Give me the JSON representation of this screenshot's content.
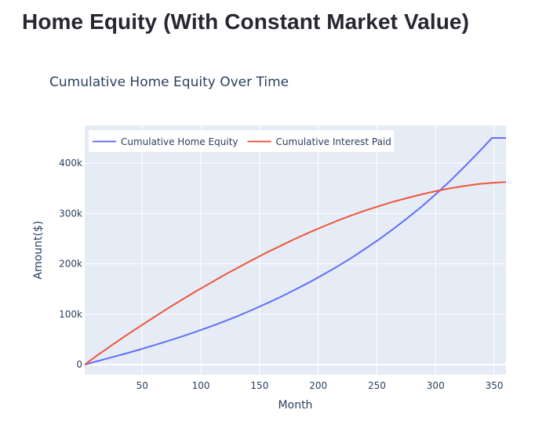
{
  "page": {
    "title": "Home Equity (With Constant Market Value)"
  },
  "chart_data": {
    "type": "line",
    "title": "Cumulative Home Equity Over Time",
    "xlabel": "Month",
    "ylabel": "Amount($)",
    "xlim": [
      1,
      360
    ],
    "ylim": [
      -20000,
      475000
    ],
    "x_ticks": [
      50,
      100,
      150,
      200,
      250,
      300,
      350
    ],
    "x_tick_labels": [
      "50",
      "100",
      "150",
      "200",
      "250",
      "300",
      "350"
    ],
    "y_ticks": [
      0,
      100000,
      200000,
      300000,
      400000
    ],
    "y_tick_labels": [
      "0",
      "100k",
      "200k",
      "300k",
      "400k"
    ],
    "grid": true,
    "legend_position": "top-left",
    "series": [
      {
        "name": "Cumulative Home Equity",
        "color": "#636efa",
        "x": [
          1,
          12,
          24,
          36,
          48,
          60,
          72,
          84,
          96,
          108,
          120,
          132,
          144,
          156,
          168,
          180,
          192,
          204,
          216,
          228,
          240,
          252,
          264,
          276,
          288,
          300,
          312,
          324,
          336,
          348,
          360
        ],
        "y": [
          0,
          7000,
          14500,
          22000,
          30000,
          38500,
          47000,
          56000,
          65500,
          75500,
          86000,
          97000,
          109000,
          121500,
          134500,
          148500,
          163000,
          178500,
          194500,
          211500,
          230000,
          249000,
          269500,
          291000,
          313500,
          338000,
          364000,
          391500,
          420000,
          450000,
          450000
        ]
      },
      {
        "name": "Cumulative Interest Paid",
        "color": "#ef553b",
        "x": [
          1,
          12,
          24,
          36,
          48,
          60,
          72,
          84,
          96,
          108,
          120,
          132,
          144,
          156,
          168,
          180,
          192,
          204,
          216,
          228,
          240,
          252,
          264,
          276,
          288,
          300,
          312,
          324,
          336,
          348,
          360
        ],
        "y": [
          0,
          19000,
          38500,
          57500,
          76000,
          94000,
          112000,
          129000,
          146000,
          162000,
          178000,
          193000,
          208000,
          222500,
          236000,
          249500,
          262000,
          274000,
          285500,
          296000,
          306000,
          315000,
          323500,
          331000,
          338000,
          344500,
          350000,
          354500,
          358500,
          361000,
          362500
        ]
      }
    ]
  }
}
